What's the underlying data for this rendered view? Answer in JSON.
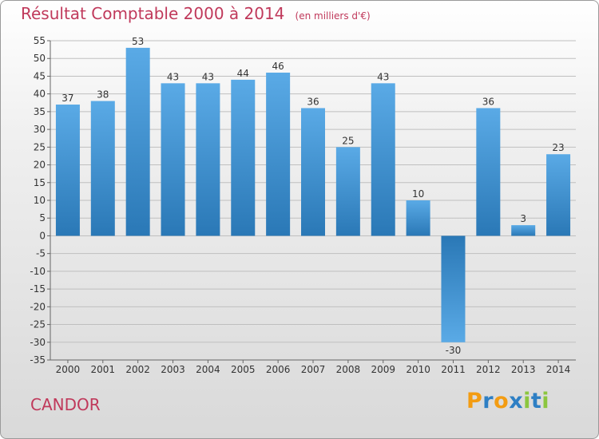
{
  "header": {
    "title": "Résultat Comptable 2000 à 2014",
    "subtitle": "(en milliers d'€)"
  },
  "commune": "CANDOR",
  "brand": {
    "name": "Proxiti",
    "letters": [
      {
        "ch": "P",
        "color": "#f39c12"
      },
      {
        "ch": "r",
        "color": "#2e7fc4"
      },
      {
        "ch": "o",
        "color": "#f39c12"
      },
      {
        "ch": "x",
        "color": "#2e7fc4"
      },
      {
        "ch": "i",
        "color": "#8cc63f"
      },
      {
        "ch": "t",
        "color": "#2e7fc4"
      },
      {
        "ch": "i",
        "color": "#8cc63f"
      }
    ]
  },
  "colors": {
    "title": "#c0395b",
    "bar_light": "#5aaae6",
    "bar_dark": "#2a78b6",
    "grid": "#bfbfbf"
  },
  "chart_data": {
    "type": "bar",
    "title": "Résultat Comptable 2000 à 2014",
    "subtitle": "(en milliers d'€)",
    "categories": [
      "2000",
      "2001",
      "2002",
      "2003",
      "2004",
      "2005",
      "2006",
      "2007",
      "2008",
      "2009",
      "2010",
      "2011",
      "2012",
      "2013",
      "2014"
    ],
    "values": [
      37,
      38,
      53,
      43,
      43,
      44,
      46,
      36,
      25,
      43,
      10,
      -30,
      36,
      3,
      23
    ],
    "ylim": [
      -35,
      55
    ],
    "ytick_step": 5,
    "grid": true,
    "xlabel": "",
    "ylabel": ""
  }
}
